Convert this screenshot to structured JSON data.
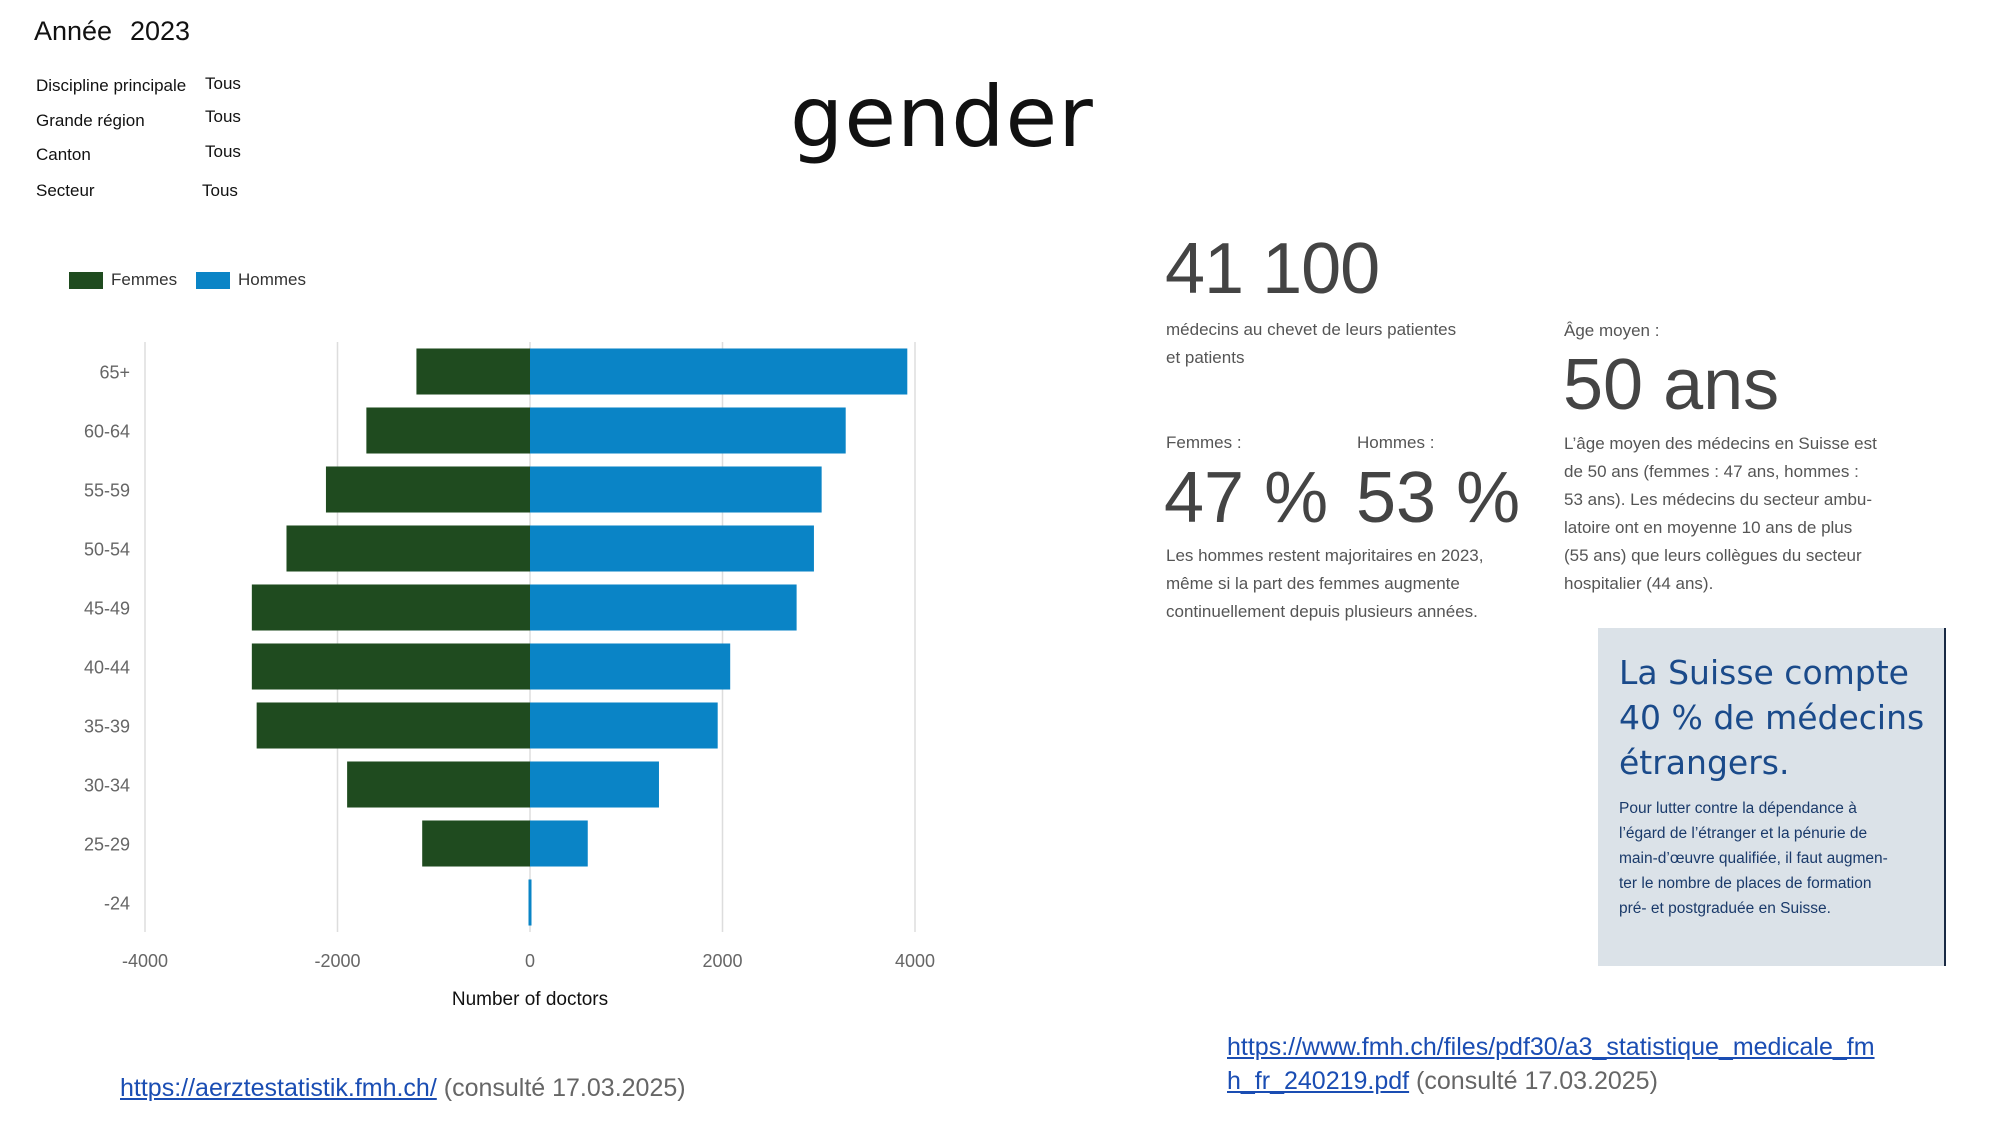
{
  "filters": {
    "year_label": "Année",
    "year_value": "2023",
    "rows": [
      {
        "label": "Discipline principale",
        "value": "Tous"
      },
      {
        "label": "Grande région",
        "value": "Tous"
      },
      {
        "label": "Canton",
        "value": "Tous"
      },
      {
        "label": "Secteur",
        "value": "Tous"
      }
    ]
  },
  "title": "gender",
  "colors": {
    "femmes": "#1f4b1f",
    "hommes": "#0a84c6",
    "grid": "#dddddd",
    "callout_bg": "#dbe2e8",
    "callout_title": "#1a4a8a"
  },
  "chart_data": {
    "type": "bar",
    "orientation": "horizontal",
    "title": "",
    "xlabel": "Number of doctors",
    "ylabel": "",
    "xlim": [
      -4000,
      4000
    ],
    "xticks": [
      -4000,
      -2000,
      0,
      2000,
      4000
    ],
    "xtick_labels": [
      "-4000",
      "-2000",
      "0",
      "2000",
      "4000"
    ],
    "categories": [
      "65+",
      "60-64",
      "55-59",
      "50-54",
      "45-49",
      "40-44",
      "35-39",
      "30-34",
      "25-29",
      "-24"
    ],
    "series": [
      {
        "name": "Femmes",
        "values": [
          -1180,
          -1700,
          -2120,
          -2530,
          -2890,
          -2890,
          -2840,
          -1900,
          -1120,
          -30
        ]
      },
      {
        "name": "Hommes",
        "values": [
          3920,
          3280,
          3030,
          2950,
          2770,
          2080,
          1950,
          1340,
          600,
          10
        ]
      }
    ],
    "legend": [
      "Femmes",
      "Hommes"
    ],
    "legend_position": "top-left",
    "grid": true
  },
  "stats": {
    "total_number": "41 100",
    "total_desc_line1": "médecins au chevet de leurs patientes",
    "total_desc_line2": "et patients",
    "femmes_label": "Femmes :",
    "femmes_pct": "47 %",
    "hommes_label": "Hommes :",
    "hommes_pct": "53 %",
    "gender_desc_line1": "Les hommes restent majoritaires en 2023,",
    "gender_desc_line2": "même si la part des femmes augmente",
    "gender_desc_line3": "continuellement depuis plusieurs années.",
    "age_label": "Âge moyen :",
    "age_value": "50 ans",
    "age_desc_line1": "L’âge moyen des médecins en Suisse est",
    "age_desc_line2": "de 50 ans (femmes : 47 ans, hommes :",
    "age_desc_line3": "53 ans). Les médecins du secteur ambu-",
    "age_desc_line4": "latoire ont en moyenne 10 ans de plus",
    "age_desc_line5": "(55 ans) que leurs collègues du secteur",
    "age_desc_line6": "hospitalier (44 ans)."
  },
  "callout": {
    "title_line1": "La Suisse compte",
    "title_line2": "40 % de médecins",
    "title_line3": "étrangers.",
    "text_line1": "Pour lutter contre la dépendance à",
    "text_line2": "l’égard de l’étranger et la pénurie de",
    "text_line3": "main-d’œuvre qualifiée, il faut augmen-",
    "text_line4": "ter le nombre de places de formation",
    "text_line5": "pré- et postgraduée en Suisse."
  },
  "sources": {
    "link1": "https://aerztestatistik.fmh.ch/",
    "consulted1": " (consulté 17.03.2025)",
    "link2_line1": "https://www.fmh.ch/files/pdf30/a3_statistique_medicale_fm",
    "link2_line2": "h_fr_240219.pdf",
    "consulted2": " (consulté 17.03.2025)"
  }
}
